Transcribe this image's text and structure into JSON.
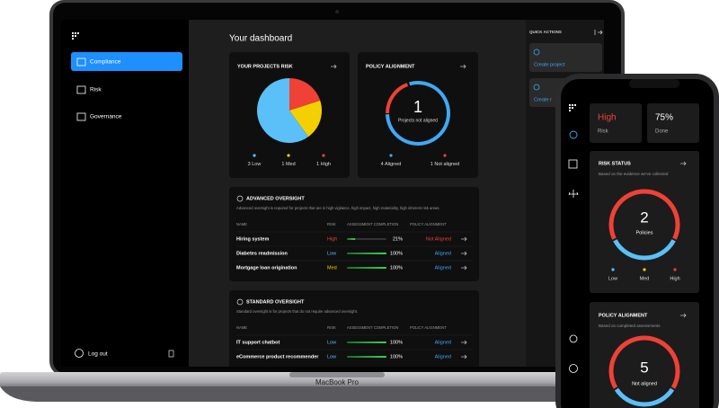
{
  "laptop": {
    "label": "MacBook Pro",
    "nav": [
      "Compliance",
      "Risk",
      "Governance"
    ],
    "logout": "Log out",
    "dashboard_title": "Your dashboard",
    "quick_actions": {
      "title": "QUICK ACTIONS",
      "items": [
        "Create project",
        "Create r"
      ]
    },
    "projects_risk": {
      "title": "YOUR PROJECTS RISK",
      "slices": [
        {
          "count": 3,
          "label": "Low",
          "color": "#5bc0f8"
        },
        {
          "count": 1,
          "label": "Med",
          "color": "#f5d000"
        },
        {
          "count": 1,
          "label": "High",
          "color": "#ef4136"
        }
      ]
    },
    "policy_alignment": {
      "title": "POLICY ALIGNMENT",
      "center_label": "Projects not aligned",
      "aligned": 4,
      "aligned_label": "Aligned",
      "aligned_color": "#3fa9f5",
      "not_aligned": 1,
      "not_aligned_label": "Not aligned",
      "not_aligned_color": "#ef4136"
    },
    "advanced": {
      "title": "ADVANCED OVERSIGHT",
      "description": "Advanced oversight is required for projects that are in high vigilance, high impact, high materiality, high inherent risk areas.",
      "columns": [
        "NAME",
        "RISK",
        "ASSESSMENT COMPLETION",
        "POLICY ALIGNMENT"
      ],
      "rows": [
        {
          "name": "Hiring system",
          "risk": "High",
          "risk_color": "#ef4136",
          "completion": {
            "value": 21,
            "label": "21%"
          },
          "alignment": "Not Aligned",
          "alignment_color": "#ef4136"
        },
        {
          "name": "Diabetes readmission",
          "risk": "Low",
          "risk_color": "#5bc0f8",
          "completion": {
            "value": 100,
            "label": "100%"
          },
          "alignment": "Aligned",
          "alignment_color": "#3fa9f5"
        },
        {
          "name": "Mortgage loan origination",
          "risk": "Med",
          "risk_color": "#f5d000",
          "completion": {
            "value": 100,
            "label": "100%"
          },
          "alignment": "Aligned",
          "alignment_color": "#3fa9f5"
        }
      ]
    },
    "standard": {
      "title": "STANDARD OVERSIGHT",
      "description": "Standard oversight is for projects that do not require advanced oversight.",
      "columns": [
        "NAME",
        "RISK",
        "ASSESSMENT COMPLETION",
        "POLICY ALIGNMENT"
      ],
      "rows": [
        {
          "name": "IT support chatbot",
          "risk": "Low",
          "risk_color": "#5bc0f8",
          "completion": {
            "value": 100,
            "label": "100%"
          },
          "alignment": "Aligned",
          "alignment_color": "#3fa9f5"
        },
        {
          "name": "eCommerce product recommender",
          "risk": "Low",
          "risk_color": "#5bc0f8",
          "completion": {
            "value": 100,
            "label": "100%"
          },
          "alignment": "Aligned",
          "alignment_color": "#3fa9f5"
        }
      ]
    }
  },
  "phone": {
    "summary": [
      {
        "value": "High",
        "label": "Risk",
        "color": "#ef4136"
      },
      {
        "value": "75%",
        "label": "Done",
        "color": "#ffffff"
      }
    ],
    "risk_status": {
      "title": "RISK STATUS",
      "subtitle": "Based on the evidence we've collected",
      "center_value": "2",
      "center_label": "Policies",
      "legend": [
        {
          "label": "Low",
          "color": "#5bc0f8"
        },
        {
          "label": "Med",
          "color": "#f5d000"
        },
        {
          "label": "High",
          "color": "#ef4136"
        }
      ]
    },
    "policy_alignment": {
      "title": "POLICY ALIGNMENT",
      "subtitle": "Based on completed assessments",
      "center_value": "5",
      "center_label": "Not aligned"
    }
  }
}
